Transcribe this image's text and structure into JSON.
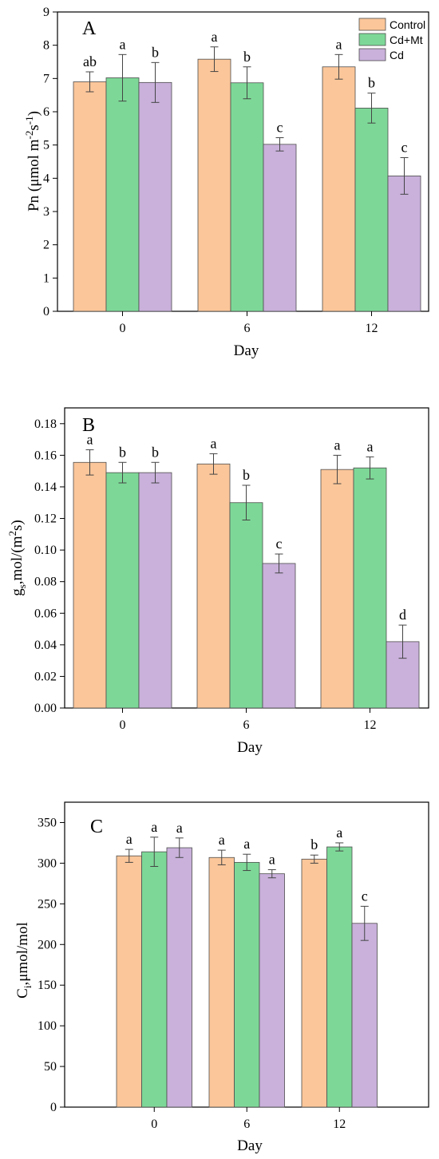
{
  "colors": {
    "control": "#FBC69A",
    "cdmt": "#7DD897",
    "cd": "#C9B1DB",
    "edge": "#4d4d4d",
    "error": "#444444"
  },
  "legend": [
    "Control",
    "Cd+Mt",
    "Cd"
  ],
  "chart_data": [
    {
      "type": "bar",
      "panel": "A",
      "title": "",
      "xlabel": "Day",
      "ylabel": "Pn (μmol m⁻²s⁻¹)",
      "categories": [
        "0",
        "6",
        "12"
      ],
      "ylim": [
        0,
        9
      ],
      "yticks": [
        "0",
        "1",
        "2",
        "3",
        "4",
        "5",
        "6",
        "7",
        "8",
        "9"
      ],
      "legend_position": "top-right",
      "series": [
        {
          "name": "Control",
          "values": [
            6.9,
            7.58,
            7.35
          ],
          "errors": [
            0.3,
            0.37,
            0.37
          ],
          "labels": [
            "ab",
            "a",
            "a"
          ]
        },
        {
          "name": "Cd+Mt",
          "values": [
            7.02,
            6.87,
            6.11
          ],
          "errors": [
            0.7,
            0.48,
            0.45
          ],
          "labels": [
            "a",
            "b",
            "b"
          ]
        },
        {
          "name": "Cd",
          "values": [
            6.88,
            5.02,
            4.07
          ],
          "errors": [
            0.6,
            0.2,
            0.55
          ],
          "labels": [
            "b",
            "c",
            "c"
          ]
        }
      ]
    },
    {
      "type": "bar",
      "panel": "B",
      "title": "",
      "xlabel": "Day",
      "ylabel": "gs,mol/(m²s)",
      "categories": [
        "0",
        "6",
        "12"
      ],
      "ylim": [
        0,
        0.19
      ],
      "yticks": [
        "0.00",
        "0.02",
        "0.04",
        "0.06",
        "0.08",
        "0.10",
        "0.12",
        "0.14",
        "0.16",
        "0.18"
      ],
      "series": [
        {
          "name": "Control",
          "values": [
            0.1555,
            0.1545,
            0.151
          ],
          "errors": [
            0.008,
            0.0065,
            0.009
          ],
          "labels": [
            "a",
            "a",
            "a"
          ]
        },
        {
          "name": "Cd+Mt",
          "values": [
            0.149,
            0.13,
            0.152
          ],
          "errors": [
            0.0065,
            0.011,
            0.007
          ],
          "labels": [
            "b",
            "b",
            "a"
          ]
        },
        {
          "name": "Cd",
          "values": [
            0.149,
            0.0915,
            0.042
          ],
          "errors": [
            0.0065,
            0.006,
            0.0105
          ],
          "labels": [
            "b",
            "c",
            "d"
          ]
        }
      ]
    },
    {
      "type": "bar",
      "panel": "C",
      "title": "",
      "xlabel": "Day",
      "ylabel": "Ci,μmol/mol",
      "categories": [
        "0",
        "6",
        "12"
      ],
      "ylim": [
        0,
        375
      ],
      "yticks": [
        "0",
        "50",
        "100",
        "150",
        "200",
        "250",
        "300",
        "350"
      ],
      "series": [
        {
          "name": "Control",
          "values": [
            309,
            307,
            305
          ],
          "errors": [
            8,
            9,
            5
          ],
          "labels": [
            "a",
            "a",
            "b"
          ]
        },
        {
          "name": "Cd+Mt",
          "values": [
            314,
            301,
            320
          ],
          "errors": [
            18,
            10,
            5
          ],
          "labels": [
            "a",
            "a",
            "a"
          ]
        },
        {
          "name": "Cd",
          "values": [
            319,
            287,
            226
          ],
          "errors": [
            12,
            5,
            21
          ],
          "labels": [
            "a",
            "a",
            "c"
          ]
        }
      ]
    }
  ]
}
